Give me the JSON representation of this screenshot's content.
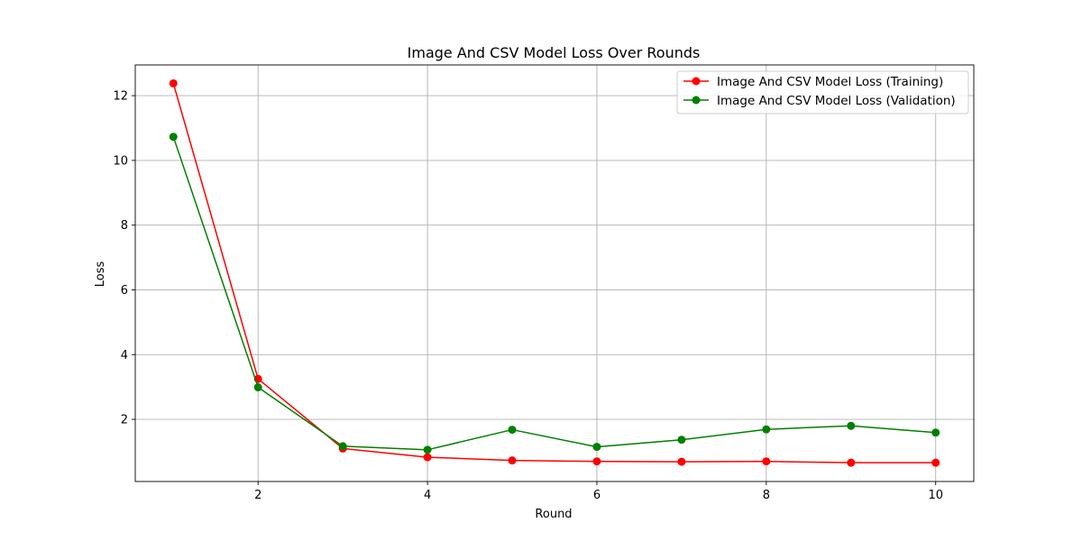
{
  "chart_data": {
    "type": "line",
    "title": "Image And CSV Model Loss Over Rounds",
    "xlabel": "Round",
    "ylabel": "Loss",
    "x": [
      1,
      2,
      3,
      4,
      5,
      6,
      7,
      8,
      9,
      10
    ],
    "xlim": [
      0.55,
      10.45
    ],
    "ylim": [
      0.08,
      12.95
    ],
    "xticks": [
      2,
      4,
      6,
      8,
      10
    ],
    "xtick_labels": [
      "2",
      "4",
      "6",
      "8",
      "10"
    ],
    "yticks": [
      2,
      4,
      6,
      8,
      10,
      12
    ],
    "ytick_labels": [
      "2",
      "4",
      "6",
      "8",
      "10",
      "12"
    ],
    "grid": true,
    "legend_position": "upper right",
    "series": [
      {
        "name": "Image And CSV Model Loss (Training)",
        "color": "#ff0000",
        "marker": "circle",
        "values": [
          12.38,
          3.25,
          1.1,
          0.83,
          0.73,
          0.7,
          0.69,
          0.7,
          0.66,
          0.66
        ]
      },
      {
        "name": "Image And CSV Model Loss (Validation)",
        "color": "#008000",
        "marker": "circle",
        "values": [
          10.73,
          2.99,
          1.17,
          1.06,
          1.68,
          1.15,
          1.37,
          1.69,
          1.8,
          1.59
        ]
      }
    ]
  }
}
